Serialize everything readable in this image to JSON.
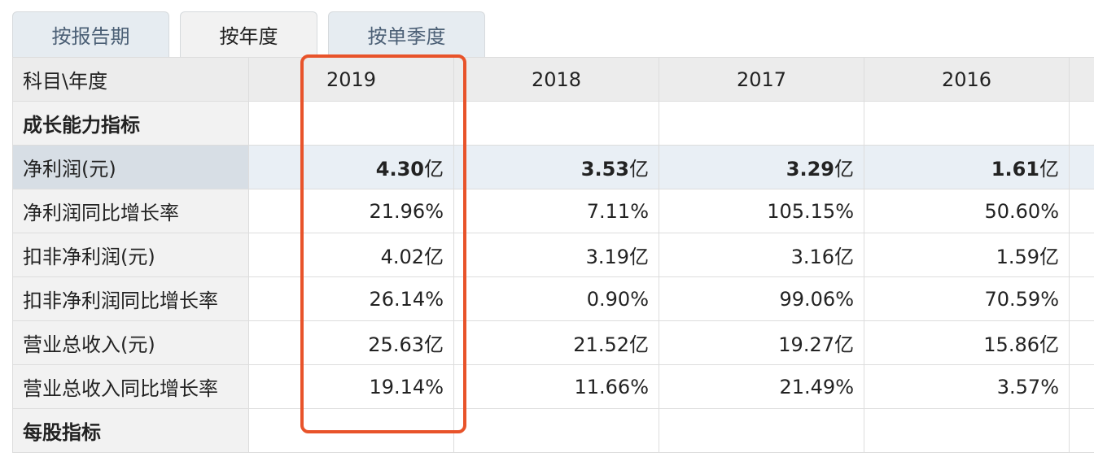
{
  "tabs": [
    {
      "label": "按报告期",
      "active": false
    },
    {
      "label": "按年度",
      "active": true
    },
    {
      "label": "按单季度",
      "active": false
    }
  ],
  "table": {
    "corner_label": "科目\\年度",
    "years": [
      "2019",
      "2018",
      "2017",
      "2016"
    ],
    "rows": [
      {
        "label": "成长能力指标",
        "type": "section",
        "values": [
          "",
          "",
          "",
          ""
        ]
      },
      {
        "label": "净利润(元)",
        "type": "highlight",
        "values": [
          {
            "num": "4.30",
            "unit": "亿"
          },
          {
            "num": "3.53",
            "unit": "亿"
          },
          {
            "num": "3.29",
            "unit": "亿"
          },
          {
            "num": "1.61",
            "unit": "亿"
          }
        ]
      },
      {
        "label": "净利润同比增长率",
        "type": "data",
        "values": [
          "21.96%",
          "7.11%",
          "105.15%",
          "50.60%"
        ]
      },
      {
        "label": "扣非净利润(元)",
        "type": "data",
        "values": [
          "4.02亿",
          "3.19亿",
          "3.16亿",
          "1.59亿"
        ]
      },
      {
        "label": "扣非净利润同比增长率",
        "type": "data",
        "values": [
          "26.14%",
          "0.90%",
          "99.06%",
          "70.59%"
        ]
      },
      {
        "label": "营业总收入(元)",
        "type": "data",
        "values": [
          "25.63亿",
          "21.52亿",
          "19.27亿",
          "15.86亿"
        ]
      },
      {
        "label": "营业总收入同比增长率",
        "type": "data",
        "values": [
          "19.14%",
          "11.66%",
          "21.49%",
          "3.57%"
        ]
      },
      {
        "label": "每股指标",
        "type": "section",
        "values": [
          "",
          "",
          "",
          ""
        ]
      }
    ]
  },
  "colors": {
    "highlight_box": "#e8532a",
    "tab_text": "#4c6076",
    "highlight_row": "#e9eff5"
  }
}
